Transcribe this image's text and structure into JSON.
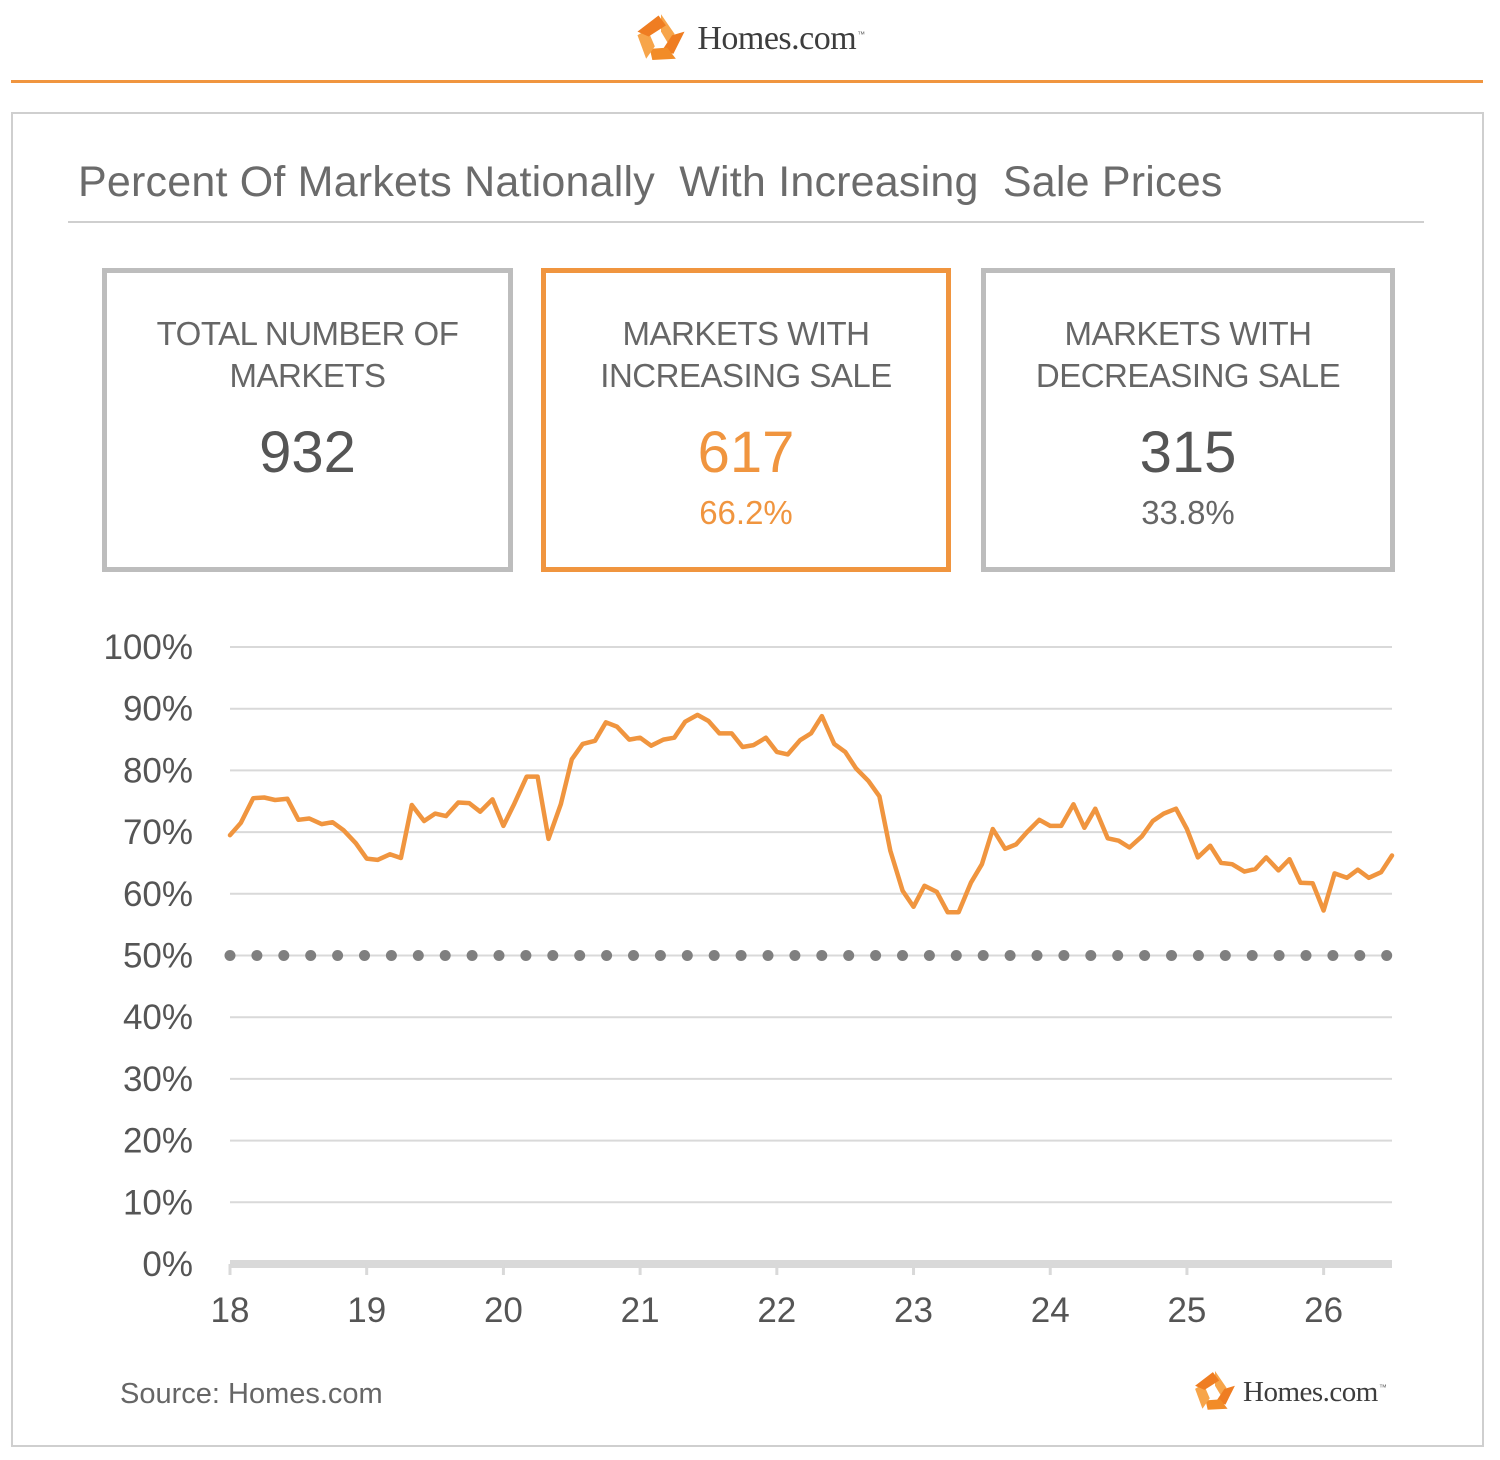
{
  "header": {
    "brand_name": "Homes.com",
    "brand_tm": "™",
    "accent_color": "#f0953f"
  },
  "title": "Percent Of Markets Nationally  With Increasing  Sale Prices",
  "stats": [
    {
      "label": "TOTAL NUMBER OF MARKETS",
      "value": "932",
      "percent": ""
    },
    {
      "label": "MARKETS WITH INCREASING SALE",
      "value": "617",
      "percent": "66.2%"
    },
    {
      "label": "MARKETS WITH DECREASING SALE",
      "value": "315",
      "percent": "33.8%"
    }
  ],
  "chart_data": {
    "type": "line",
    "title": "",
    "xlabel": "",
    "ylabel": "",
    "x_ticks": [
      "18",
      "19",
      "20",
      "21",
      "22",
      "23",
      "24",
      "25",
      "26"
    ],
    "y_ticks": [
      "0%",
      "10%",
      "20%",
      "30%",
      "40%",
      "50%",
      "60%",
      "70%",
      "80%",
      "90%",
      "100%"
    ],
    "xlim": [
      18,
      26.5
    ],
    "ylim": [
      0,
      100
    ],
    "grid": true,
    "reference_line": {
      "y": 50,
      "style": "dotted",
      "color": "#7f7f7f"
    },
    "series": [
      {
        "color": "#f0953f",
        "x": [
          18.0,
          18.08,
          18.17,
          18.25,
          18.33,
          18.42,
          18.5,
          18.58,
          18.67,
          18.75,
          18.83,
          18.92,
          19.0,
          19.08,
          19.17,
          19.25,
          19.33,
          19.42,
          19.5,
          19.58,
          19.67,
          19.75,
          19.83,
          19.92,
          20.0,
          20.08,
          20.17,
          20.25,
          20.33,
          20.42,
          20.5,
          20.58,
          20.67,
          20.75,
          20.83,
          20.92,
          21.0,
          21.08,
          21.17,
          21.25,
          21.33,
          21.42,
          21.5,
          21.58,
          21.67,
          21.75,
          21.83,
          21.92,
          22.0,
          22.08,
          22.17,
          22.25,
          22.33,
          22.42,
          22.5,
          22.58,
          22.67,
          22.75,
          22.83,
          22.92,
          23.0,
          23.08,
          23.17,
          23.25,
          23.33,
          23.42,
          23.5,
          23.58,
          23.67,
          23.75,
          23.83,
          23.92,
          24.0,
          24.08,
          24.17,
          24.25,
          24.33,
          24.42,
          24.5,
          24.58,
          24.67,
          24.75,
          24.83,
          24.92,
          25.0,
          25.08,
          25.17,
          25.25,
          25.33,
          25.42,
          25.5,
          25.58,
          25.67,
          25.75,
          25.83,
          25.92,
          26.0,
          26.08,
          26.17,
          26.25,
          26.33,
          26.42,
          26.5
        ],
        "y": [
          69.5,
          71.5,
          75.5,
          75.6,
          75.2,
          75.4,
          72.0,
          72.2,
          71.3,
          71.6,
          70.3,
          68.2,
          65.7,
          65.5,
          66.4,
          65.8,
          74.4,
          71.8,
          73.0,
          72.6,
          74.8,
          74.7,
          73.3,
          75.3,
          71.0,
          74.6,
          79.0,
          79.0,
          68.9,
          74.5,
          81.8,
          84.3,
          84.8,
          87.8,
          87.1,
          85.0,
          85.3,
          84.0,
          85.0,
          85.3,
          87.9,
          89.0,
          88.0,
          86.0,
          86.0,
          83.8,
          84.1,
          85.3,
          83.0,
          82.6,
          84.9,
          86.0,
          88.8,
          84.3,
          83.0,
          80.3,
          78.3,
          75.8,
          67.0,
          60.5,
          57.9,
          61.3,
          60.3,
          57.0,
          57.0,
          61.8,
          64.8,
          70.5,
          67.3,
          68.0,
          70.0,
          72.0,
          71.0,
          71.0,
          74.5,
          70.7,
          73.8,
          69.0,
          68.6,
          67.5,
          69.3,
          71.8,
          73.0,
          73.8,
          70.5,
          65.9,
          67.8,
          65.0,
          64.8,
          63.6,
          64.0,
          65.9,
          63.8,
          65.6,
          61.8,
          61.7,
          57.3,
          63.3,
          62.6,
          63.9,
          62.6,
          63.5,
          66.2
        ]
      }
    ]
  },
  "source": "Source:  Homes.com",
  "footer": {
    "brand_name": "Homes.com",
    "brand_tm": "™"
  }
}
